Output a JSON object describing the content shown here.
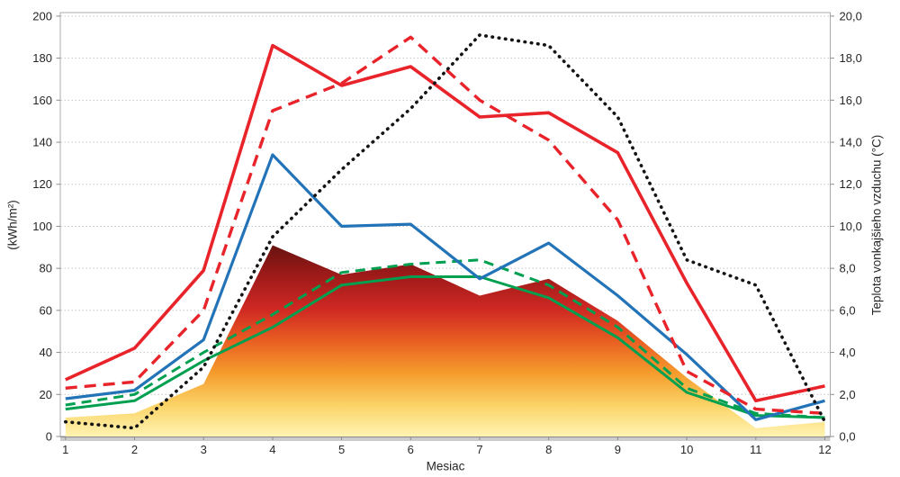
{
  "chart_data": {
    "type": "line",
    "title": "",
    "xlabel": "Mesiac",
    "ylabel_left": "(kWh/m²)",
    "ylabel_right": "Teplota vonkajšieho vzduchu (°C)",
    "x": [
      1,
      2,
      3,
      4,
      5,
      6,
      7,
      8,
      9,
      10,
      11,
      12
    ],
    "xtick_labels": [
      "1",
      "2",
      "3",
      "4",
      "5",
      "6",
      "7",
      "8",
      "9",
      "10",
      "11",
      "12"
    ],
    "ylim_left": [
      0,
      200
    ],
    "ylim_right": [
      0.0,
      20.0
    ],
    "yticks_left": [
      0,
      20,
      40,
      60,
      80,
      100,
      120,
      140,
      160,
      180,
      200
    ],
    "ytick_labels_left": [
      "0",
      "20",
      "40",
      "60",
      "80",
      "100",
      "120",
      "140",
      "160",
      "180",
      "200"
    ],
    "yticks_right": [
      0,
      2,
      4,
      6,
      8,
      10,
      12,
      14,
      16,
      18,
      20
    ],
    "ytick_labels_right": [
      "0,0",
      "2,0",
      "4,0",
      "6,0",
      "8,0",
      "10,0",
      "12,0",
      "14,0",
      "16,0",
      "18,0",
      "20,0"
    ],
    "grid": "horizontal-dotted",
    "legend": "none",
    "series": [
      {
        "id": "area-gradient",
        "name": "gradient-area-irradiation",
        "type": "area",
        "axis": "left",
        "values": [
          9,
          11,
          25,
          91,
          77,
          82,
          67,
          75,
          55,
          28,
          4,
          7
        ]
      },
      {
        "id": "green-solid",
        "name": "green-solid-line",
        "type": "line",
        "axis": "left",
        "color": "#00A050",
        "width": 3,
        "dash": null,
        "values": [
          13,
          17,
          36,
          52,
          72,
          76,
          76,
          66,
          47,
          21,
          10,
          9
        ]
      },
      {
        "id": "green-dashed",
        "name": "green-dashed-line",
        "type": "line",
        "axis": "left",
        "color": "#00A050",
        "width": 3,
        "dash": "11 7",
        "values": [
          15,
          20,
          40,
          58,
          78,
          82,
          84,
          72,
          52,
          23,
          11,
          9
        ]
      },
      {
        "id": "blue-solid",
        "name": "blue-solid-line",
        "type": "line",
        "axis": "left",
        "color": "#2273B8",
        "width": 3.2,
        "dash": null,
        "values": [
          18,
          22,
          46,
          134,
          100,
          101,
          75,
          92,
          67,
          39,
          8,
          17
        ]
      },
      {
        "id": "red-dashed",
        "name": "red-dashed-line",
        "type": "line",
        "axis": "left",
        "color": "#E8232A",
        "width": 3.4,
        "dash": "13 8",
        "values": [
          23,
          26,
          60,
          155,
          168,
          190,
          160,
          141,
          103,
          31,
          13,
          11
        ]
      },
      {
        "id": "red-solid",
        "name": "red-solid-line",
        "type": "line",
        "axis": "left",
        "color": "#E8232A",
        "width": 3.6,
        "dash": null,
        "values": [
          27,
          42,
          79,
          186,
          167,
          176,
          152,
          154,
          135,
          73,
          17,
          24
        ]
      },
      {
        "id": "black-dotted",
        "name": "black-dotted-temperature",
        "type": "line",
        "axis": "right",
        "color": "#141414",
        "width": 3.6,
        "dash": "0.5 6.8",
        "linecap": "round",
        "values": [
          0.7,
          0.4,
          3.3,
          9.5,
          12.7,
          15.6,
          19.1,
          18.6,
          15.2,
          8.4,
          7.2,
          0.7
        ]
      }
    ],
    "colors": {
      "grid": "#c6c6c6",
      "plot_border": "#ababab",
      "axis_line": "#8c8c8c",
      "axis_shadow": "#cccccc",
      "tick_text": "#262626",
      "area_gradient_stops": [
        [
          "0%",
          "#64120f"
        ],
        [
          "16%",
          "#9c1a19"
        ],
        [
          "34%",
          "#cf2823"
        ],
        [
          "50%",
          "#e85c22"
        ],
        [
          "67%",
          "#f59b2b"
        ],
        [
          "84%",
          "#fbd468"
        ],
        [
          "100%",
          "#fff3b2"
        ]
      ]
    }
  }
}
